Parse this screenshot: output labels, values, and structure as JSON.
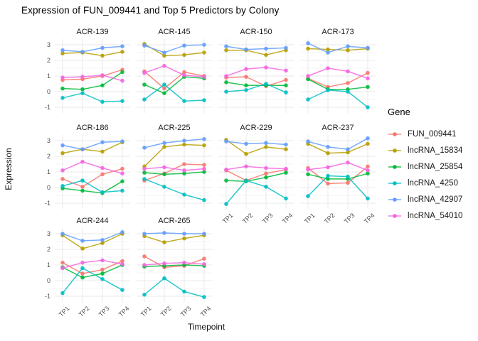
{
  "chart_data": {
    "type": "line",
    "title": "Expression of FUN_009441 and Top 5 Predictors by Colony",
    "xlabel": "Timepoint",
    "ylabel": "Expression",
    "legend_title": "Gene",
    "legend_position": "right",
    "grid": true,
    "x_ticks": [
      "TP1",
      "TP2",
      "TP3",
      "TP4"
    ],
    "x_tick_angle": 45,
    "y_ticks": [
      3,
      2,
      1,
      0,
      -1
    ],
    "ylim": [
      -1.2,
      3.35
    ],
    "series": [
      {
        "name": "FUN_009441",
        "color": "#F8766D"
      },
      {
        "name": "lncRNA_15834",
        "color": "#B79F00"
      },
      {
        "name": "lncRNA_25854",
        "color": "#00BA38"
      },
      {
        "name": "lncRNA_4250",
        "color": "#00BFC4"
      },
      {
        "name": "lncRNA_42907",
        "color": "#619CFF"
      },
      {
        "name": "lncRNA_54010",
        "color": "#F564E2"
      }
    ],
    "facets": [
      {
        "name": "ACR-139",
        "values": [
          [
            0.75,
            0.8,
            1.0,
            1.4
          ],
          [
            2.45,
            2.5,
            2.3,
            2.55
          ],
          [
            0.2,
            0.15,
            0.4,
            1.25
          ],
          [
            -0.4,
            -0.1,
            -0.65,
            -0.6
          ],
          [
            2.65,
            2.55,
            2.8,
            2.9
          ],
          [
            0.9,
            0.95,
            1.05,
            0.7
          ]
        ]
      },
      {
        "name": "ACR-145",
        "values": [
          [
            1.3,
            0.2,
            1.25,
            1.0
          ],
          [
            3.05,
            2.3,
            2.35,
            2.5
          ],
          [
            0.45,
            -0.1,
            0.95,
            0.85
          ],
          [
            -0.5,
            0.45,
            -0.6,
            -0.55
          ],
          [
            2.95,
            2.5,
            2.95,
            3.0
          ],
          [
            1.2,
            1.65,
            1.05,
            0.95
          ]
        ]
      },
      {
        "name": "ACR-150",
        "values": [
          [
            0.9,
            0.95,
            0.35,
            0.75
          ],
          [
            2.65,
            2.65,
            2.35,
            2.65
          ],
          [
            0.6,
            0.4,
            0.4,
            0.4
          ],
          [
            0.0,
            0.1,
            0.5,
            -0.05
          ],
          [
            2.9,
            2.7,
            2.75,
            2.8
          ],
          [
            1.0,
            1.45,
            1.55,
            1.35
          ]
        ]
      },
      {
        "name": "ACR-173",
        "values": [
          [
            0.85,
            0.3,
            0.55,
            1.2
          ],
          [
            2.75,
            2.7,
            2.65,
            2.75
          ],
          [
            0.8,
            0.15,
            0.15,
            0.3
          ],
          [
            -0.5,
            0.1,
            0.0,
            -1.0
          ],
          [
            3.1,
            2.5,
            2.9,
            2.8
          ],
          [
            1.0,
            1.5,
            1.3,
            0.85
          ]
        ]
      },
      {
        "name": "ACR-186",
        "values": [
          [
            0.55,
            0.05,
            0.85,
            1.2
          ],
          [
            2.2,
            2.45,
            2.3,
            2.9
          ],
          [
            -0.05,
            -0.2,
            -0.35,
            0.4
          ],
          [
            0.1,
            0.45,
            -0.3,
            -0.2
          ],
          [
            2.7,
            2.45,
            2.9,
            2.95
          ],
          [
            1.1,
            1.65,
            1.25,
            0.9
          ]
        ]
      },
      {
        "name": "ACR-225",
        "values": [
          [
            0.45,
            0.9,
            1.5,
            1.45
          ],
          [
            1.35,
            2.6,
            2.75,
            2.7
          ],
          [
            0.95,
            0.85,
            0.9,
            1.0
          ],
          [
            0.55,
            0.05,
            -0.45,
            -0.8
          ],
          [
            2.55,
            2.85,
            3.0,
            3.1
          ],
          [
            1.2,
            1.3,
            1.1,
            1.2
          ]
        ]
      },
      {
        "name": "ACR-229",
        "values": [
          [
            1.1,
            0.45,
            0.9,
            1.15
          ],
          [
            3.05,
            2.15,
            2.6,
            2.45
          ],
          [
            0.45,
            0.4,
            0.65,
            0.95
          ],
          [
            -1.05,
            0.45,
            0.05,
            -0.7
          ],
          [
            2.95,
            2.8,
            2.85,
            2.75
          ],
          [
            1.15,
            1.35,
            1.25,
            1.2
          ]
        ]
      },
      {
        "name": "ACR-237",
        "values": [
          [
            1.25,
            0.25,
            0.3,
            1.35
          ],
          [
            2.8,
            2.2,
            2.25,
            2.8
          ],
          [
            0.85,
            0.55,
            0.55,
            0.9
          ],
          [
            -0.55,
            0.75,
            0.7,
            -0.7
          ],
          [
            2.95,
            2.6,
            2.45,
            3.15
          ],
          [
            1.15,
            1.3,
            1.6,
            1.1
          ]
        ]
      },
      {
        "name": "ACR-244",
        "values": [
          [
            1.15,
            0.45,
            0.7,
            1.25
          ],
          [
            2.9,
            2.05,
            2.4,
            3.0
          ],
          [
            0.85,
            0.2,
            0.45,
            1.0
          ],
          [
            -0.8,
            0.8,
            0.1,
            -0.6
          ],
          [
            3.0,
            2.55,
            2.6,
            3.1
          ],
          [
            0.8,
            1.15,
            1.3,
            1.05
          ]
        ]
      },
      {
        "name": "ACR-265",
        "values": [
          [
            1.55,
            0.85,
            0.95,
            1.4
          ],
          [
            2.85,
            2.45,
            2.7,
            2.9
          ],
          [
            0.9,
            0.95,
            1.0,
            0.95
          ],
          [
            -0.9,
            0.15,
            -0.7,
            -1.05
          ],
          [
            3.0,
            3.05,
            3.0,
            3.0
          ],
          [
            1.0,
            1.1,
            1.15,
            1.05
          ]
        ]
      }
    ]
  }
}
